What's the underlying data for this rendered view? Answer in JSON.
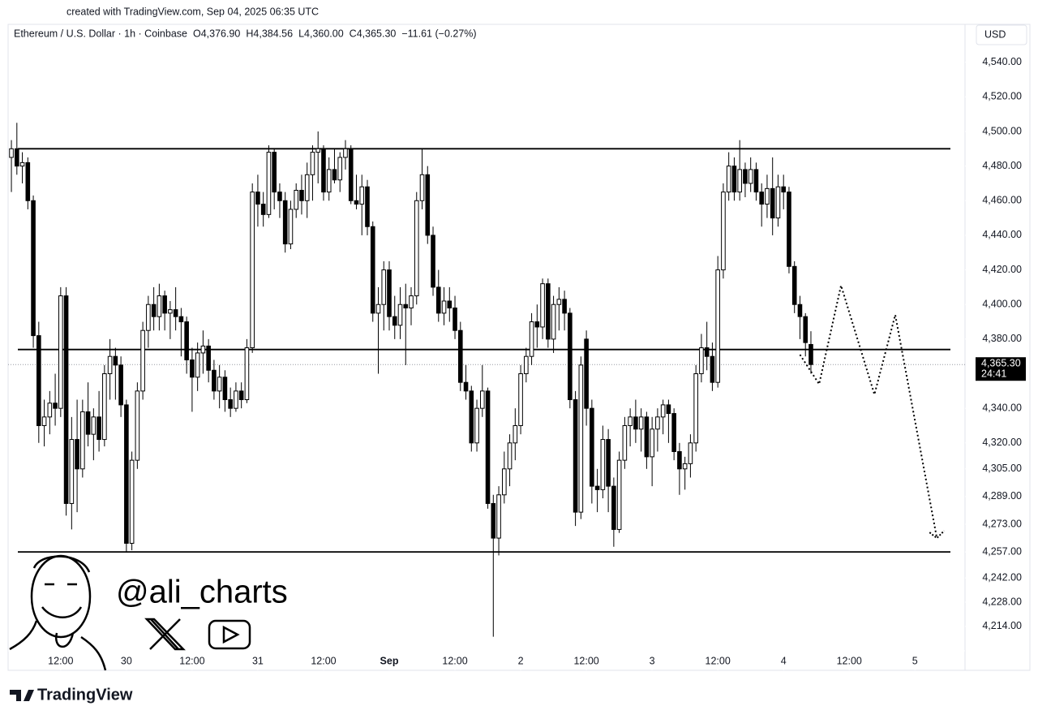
{
  "created": "created with TradingView.com, Sep 04, 2025 06:35 UTC",
  "brand": "TradingView",
  "watermark": "@ali_charts",
  "chart_data": {
    "type": "candlestick",
    "symbol": "Ethereum / U.S. Dollar · 1h · Coinbase",
    "ohlc_legend": [
      "O4,376.90",
      "H4,384.56",
      "L4,360.00",
      "C4,365.30",
      "−11.61 (−0.27%)"
    ],
    "currency": "USD",
    "up_color": "#ffffff",
    "down_color": "#000000",
    "border_color": "#000000",
    "xlim": [
      2.4,
      176.4
    ],
    "ylim": [
      4188.6,
      4561.9
    ],
    "xticks": [
      {
        "value": 12,
        "label": "12:00"
      },
      {
        "value": 24,
        "label": "30"
      },
      {
        "value": 36,
        "label": "12:00"
      },
      {
        "value": 48,
        "label": "31"
      },
      {
        "value": 60,
        "label": "12:00"
      },
      {
        "value": 72,
        "label": "Sep"
      },
      {
        "value": 84,
        "label": "12:00"
      },
      {
        "value": 96,
        "label": "2"
      },
      {
        "value": 108,
        "label": "12:00"
      },
      {
        "value": 120,
        "label": "3"
      },
      {
        "value": 132,
        "label": "12:00"
      },
      {
        "value": 144,
        "label": "4"
      },
      {
        "value": 156,
        "label": "12:00"
      },
      {
        "value": 168,
        "label": "5"
      }
    ],
    "yticks": [
      {
        "value": 4540,
        "label": "4,540.00"
      },
      {
        "value": 4520,
        "label": "4,520.00"
      },
      {
        "value": 4500,
        "label": "4,500.00"
      },
      {
        "value": 4480,
        "label": "4,480.00"
      },
      {
        "value": 4460,
        "label": "4,460.00"
      },
      {
        "value": 4440,
        "label": "4,440.00"
      },
      {
        "value": 4420,
        "label": "4,420.00"
      },
      {
        "value": 4400,
        "label": "4,400.00"
      },
      {
        "value": 4380,
        "label": "4,380.00"
      },
      {
        "value": 4340,
        "label": "4,340.00"
      },
      {
        "value": 4320,
        "label": "4,320.00"
      },
      {
        "value": 4305,
        "label": "4,305.00"
      },
      {
        "value": 4289,
        "label": "4,289.00"
      },
      {
        "value": 4273,
        "label": "4,273.00"
      },
      {
        "value": 4257,
        "label": "4,257.00"
      },
      {
        "value": 4242,
        "label": "4,242.00"
      },
      {
        "value": 4228,
        "label": "4,228.00"
      },
      {
        "value": 4214,
        "label": "4,214.00"
      }
    ],
    "candles": {
      "x": [
        3,
        4,
        5,
        6,
        7,
        8,
        9,
        10,
        11,
        12,
        13,
        14,
        15,
        16,
        17,
        18,
        19,
        20,
        21,
        22,
        23,
        24,
        25,
        26,
        27,
        28,
        29,
        30,
        31,
        32,
        33,
        34,
        35,
        36,
        37,
        38,
        39,
        40,
        41,
        42,
        43,
        44,
        45,
        46,
        47,
        48,
        49,
        50,
        51,
        52,
        53,
        54,
        55,
        56,
        57,
        58,
        59,
        60,
        61,
        62,
        63,
        64,
        65,
        66,
        67,
        68,
        69,
        70,
        71,
        72,
        73,
        74,
        75,
        76,
        77,
        78,
        79,
        80,
        81,
        82,
        83,
        84,
        85,
        86,
        87,
        88,
        89,
        90,
        91,
        92,
        93,
        94,
        95,
        96,
        97,
        98,
        99,
        100,
        101,
        102,
        103,
        104,
        105,
        106,
        107,
        108,
        109,
        110,
        111,
        112,
        113,
        114,
        115,
        116,
        117,
        118,
        119,
        120,
        121,
        122,
        123,
        124,
        125,
        126,
        127,
        128,
        129,
        130,
        131,
        132,
        133,
        134,
        135,
        136,
        137,
        138,
        139,
        140,
        141,
        142,
        143,
        144,
        145,
        146,
        147,
        148,
        149
      ],
      "open": [
        4485,
        4490,
        4480,
        4482,
        4460,
        4382,
        4330,
        4335,
        4343,
        4340,
        4405,
        4285,
        4322,
        4305,
        4338,
        4325,
        4335,
        4322,
        4360,
        4370,
        4365,
        4342,
        4262,
        4310,
        4350,
        4385,
        4400,
        4393,
        4405,
        4395,
        4397,
        4393,
        4390,
        4368,
        4358,
        4372,
        4376,
        4362,
        4350,
        4358,
        4345,
        4340,
        4350,
        4345,
        4375,
        4465,
        4458,
        4452,
        4488,
        4465,
        4460,
        4435,
        4455,
        4466,
        4460,
        4475,
        4488,
        4490,
        4465,
        4478,
        4472,
        4485,
        4490,
        4460,
        4458,
        4468,
        4445,
        4395,
        4400,
        4420,
        4393,
        4388,
        4400,
        4398,
        4405,
        4460,
        4475,
        4440,
        4410,
        4395,
        4402,
        4398,
        4385,
        4355,
        4350,
        4320,
        4340,
        4350,
        4285,
        4265,
        4290,
        4305,
        4320,
        4330,
        4360,
        4370,
        4390,
        4387,
        4412,
        4380,
        4400,
        4403,
        4395,
        4345,
        4280,
        4380,
        4340,
        4295,
        4293,
        4322,
        4295,
        4270,
        4310,
        4330,
        4335,
        4328,
        4335,
        4312,
        4328,
        4335,
        4342,
        4337,
        4315,
        4305,
        4308,
        4320,
        4360,
        4375,
        4370,
        4355,
        4420,
        4465,
        4480,
        4465,
        4478,
        4470,
        4478,
        4465,
        4458,
        4467,
        4450,
        4468,
        4465,
        4422,
        4400,
        4393,
        4376.9
      ],
      "high": [
        4495,
        4505,
        4488,
        4485,
        4463,
        4390,
        4345,
        4350,
        4360,
        4410,
        4410,
        4335,
        4345,
        4345,
        4355,
        4340,
        4350,
        4365,
        4380,
        4375,
        4370,
        4345,
        4315,
        4355,
        4390,
        4405,
        4410,
        4412,
        4408,
        4402,
        4410,
        4398,
        4393,
        4375,
        4378,
        4385,
        4380,
        4368,
        4365,
        4362,
        4352,
        4355,
        4355,
        4380,
        4470,
        4475,
        4465,
        4492,
        4490,
        4470,
        4465,
        4460,
        4470,
        4475,
        4482,
        4492,
        4500,
        4492,
        4485,
        4490,
        4488,
        4495,
        4492,
        4475,
        4475,
        4472,
        4448,
        4410,
        4425,
        4425,
        4405,
        4410,
        4412,
        4410,
        4465,
        4490,
        4480,
        4445,
        4420,
        4410,
        4410,
        4405,
        4390,
        4365,
        4353,
        4345,
        4365,
        4352,
        4290,
        4295,
        4315,
        4325,
        4340,
        4365,
        4375,
        4395,
        4400,
        4415,
        4415,
        4405,
        4410,
        4408,
        4398,
        4350,
        4370,
        4385,
        4345,
        4305,
        4330,
        4328,
        4300,
        4315,
        4335,
        4340,
        4345,
        4340,
        4338,
        4335,
        4340,
        4345,
        4345,
        4340,
        4320,
        4312,
        4325,
        4365,
        4383,
        4390,
        4378,
        4428,
        4470,
        4488,
        4485,
        4495,
        4482,
        4485,
        4482,
        4470,
        4475,
        4485,
        4475,
        4475,
        4468,
        4425,
        4405,
        4395,
        4384.56
      ],
      "low": [
        4465,
        4475,
        4470,
        4455,
        4375,
        4320,
        4318,
        4325,
        4330,
        4335,
        4278,
        4270,
        4280,
        4300,
        4318,
        4310,
        4315,
        4318,
        4345,
        4345,
        4335,
        4257,
        4258,
        4305,
        4345,
        4375,
        4385,
        4385,
        4385,
        4380,
        4385,
        4370,
        4360,
        4338,
        4350,
        4360,
        4355,
        4345,
        4340,
        4338,
        4335,
        4338,
        4340,
        4343,
        4372,
        4445,
        4445,
        4450,
        4455,
        4450,
        4430,
        4432,
        4450,
        4452,
        4450,
        4460,
        4470,
        4460,
        4460,
        4470,
        4465,
        4478,
        4458,
        4455,
        4440,
        4440,
        4390,
        4360,
        4385,
        4385,
        4380,
        4380,
        4365,
        4388,
        4400,
        4455,
        4435,
        4405,
        4390,
        4388,
        4390,
        4380,
        4350,
        4345,
        4315,
        4315,
        4335,
        4282,
        4208,
        4255,
        4285,
        4295,
        4310,
        4325,
        4355,
        4365,
        4375,
        4380,
        4375,
        4372,
        4385,
        4385,
        4340,
        4272,
        4276,
        4330,
        4285,
        4280,
        4288,
        4280,
        4260,
        4268,
        4305,
        4318,
        4320,
        4315,
        4305,
        4295,
        4315,
        4325,
        4320,
        4310,
        4290,
        4293,
        4300,
        4315,
        4355,
        4362,
        4350,
        4352,
        4415,
        4460,
        4460,
        4460,
        4462,
        4465,
        4460,
        4445,
        4450,
        4440,
        4445,
        4455,
        4418,
        4395,
        4380,
        4370,
        4360
      ],
      "close": [
        4490,
        4480,
        4482,
        4460,
        4382,
        4330,
        4335,
        4343,
        4340,
        4405,
        4285,
        4322,
        4305,
        4338,
        4325,
        4335,
        4322,
        4360,
        4370,
        4365,
        4342,
        4262,
        4310,
        4350,
        4385,
        4400,
        4393,
        4405,
        4395,
        4397,
        4393,
        4390,
        4368,
        4358,
        4372,
        4376,
        4362,
        4350,
        4358,
        4345,
        4340,
        4350,
        4345,
        4375,
        4465,
        4458,
        4452,
        4488,
        4465,
        4460,
        4435,
        4455,
        4466,
        4460,
        4475,
        4488,
        4490,
        4465,
        4478,
        4472,
        4485,
        4490,
        4460,
        4458,
        4468,
        4445,
        4395,
        4400,
        4420,
        4393,
        4388,
        4400,
        4398,
        4405,
        4460,
        4475,
        4440,
        4410,
        4395,
        4402,
        4398,
        4385,
        4355,
        4350,
        4320,
        4340,
        4350,
        4285,
        4265,
        4290,
        4305,
        4320,
        4330,
        4360,
        4370,
        4390,
        4387,
        4412,
        4380,
        4400,
        4403,
        4395,
        4345,
        4280,
        4365,
        4340,
        4295,
        4293,
        4322,
        4295,
        4270,
        4310,
        4330,
        4335,
        4328,
        4335,
        4312,
        4328,
        4335,
        4342,
        4337,
        4315,
        4305,
        4308,
        4320,
        4360,
        4375,
        4370,
        4355,
        4420,
        4465,
        4480,
        4465,
        4478,
        4470,
        4478,
        4465,
        4458,
        4467,
        4450,
        4468,
        4465,
        4422,
        4400,
        4393,
        4378,
        4365.3
      ]
    },
    "levels": [
      4490,
      4374,
      4257
    ],
    "projection": {
      "x": [
        147,
        150.5,
        154.5,
        160.6,
        164.4,
        172
      ],
      "values": [
        4371,
        4354,
        4411,
        4348,
        4394,
        4265
      ]
    },
    "last_price": 4365.3,
    "last_price_label": "4,365.30",
    "countdown": "24:41"
  }
}
